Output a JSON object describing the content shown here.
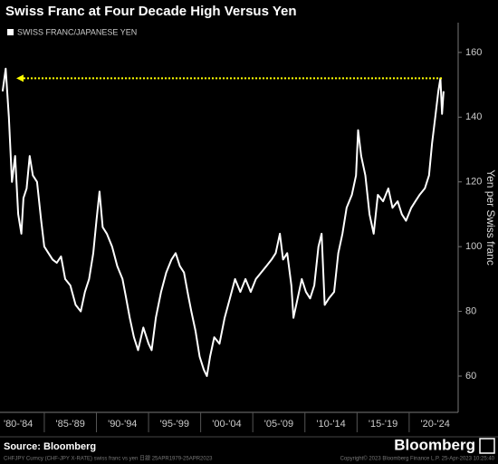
{
  "chart_data": {
    "type": "line",
    "title": "Swiss Franc at Four Decade High Versus Yen",
    "y_axis_label": "Yen per Swiss franc",
    "source": "Source: Bloomberg",
    "brand": "Bloomberg",
    "footnote_left": "CHFJPY Curncy (CHF-JPY X-RATE) swiss franc vs yen 日銀 25APR1979-25APR2023",
    "footnote_right": "Copyright© 2023 Bloomberg Finance L.P.   25-Apr-2023 10:25:40",
    "reference_line": {
      "value": 152,
      "color": "#ffff00"
    },
    "xlim": [
      1980.75,
      2024.7
    ],
    "ylim": [
      48.8,
      169.2
    ],
    "yticks": [
      60,
      80,
      100,
      120,
      140,
      160
    ],
    "xticks": [
      {
        "value": 1982.5,
        "label": "'80-'84"
      },
      {
        "value": 1987.5,
        "label": "'85-'89"
      },
      {
        "value": 1992.5,
        "label": "'90-'94"
      },
      {
        "value": 1997.5,
        "label": "'95-'99"
      },
      {
        "value": 2002.5,
        "label": "'00-'04"
      },
      {
        "value": 2007.5,
        "label": "'05-'09"
      },
      {
        "value": 2012.5,
        "label": "'10-'14"
      },
      {
        "value": 2017.5,
        "label": "'15-'19"
      },
      {
        "value": 2022.5,
        "label": "'20-'24"
      }
    ],
    "x": [
      1981.0,
      1981.3,
      1981.6,
      1981.9,
      1982.2,
      1982.5,
      1982.8,
      1983.0,
      1983.3,
      1983.6,
      1983.9,
      1984.3,
      1984.7,
      1985.0,
      1985.4,
      1985.8,
      1986.2,
      1986.6,
      1987.0,
      1987.5,
      1988.0,
      1988.5,
      1988.9,
      1989.3,
      1989.7,
      1990.0,
      1990.3,
      1990.6,
      1991.0,
      1991.5,
      1992.0,
      1992.5,
      1992.8,
      1993.2,
      1993.6,
      1994.0,
      1994.5,
      1995.0,
      1995.3,
      1995.7,
      1996.2,
      1996.7,
      1997.2,
      1997.6,
      1998.0,
      1998.4,
      1998.8,
      1999.1,
      1999.5,
      1999.9,
      2000.3,
      2000.6,
      2000.9,
      2001.3,
      2001.8,
      2002.3,
      2002.8,
      2003.3,
      2003.8,
      2004.3,
      2004.8,
      2005.3,
      2005.8,
      2006.3,
      2006.8,
      2007.2,
      2007.6,
      2007.9,
      2008.3,
      2008.7,
      2008.9,
      2009.3,
      2009.7,
      2010.1,
      2010.5,
      2010.9,
      2011.3,
      2011.6,
      2011.9,
      2012.3,
      2012.8,
      2013.2,
      2013.6,
      2014.0,
      2014.5,
      2014.9,
      2015.1,
      2015.4,
      2015.8,
      2016.2,
      2016.6,
      2017.0,
      2017.5,
      2018.0,
      2018.4,
      2018.9,
      2019.3,
      2019.7,
      2020.2,
      2020.6,
      2021.0,
      2021.5,
      2021.9,
      2022.2,
      2022.5,
      2022.8,
      2023.0,
      2023.15,
      2023.3
    ],
    "series": [
      {
        "name": "SWISS FRANC/JAPANESE YEN",
        "color": "#ffffff",
        "values": [
          148,
          155,
          140,
          120,
          128,
          110,
          104,
          115,
          118,
          128,
          122,
          120,
          108,
          100,
          98,
          96,
          95,
          97,
          90,
          88,
          82,
          80,
          86,
          90,
          98,
          108,
          117,
          106,
          104,
          100,
          94,
          90,
          85,
          78,
          72,
          68,
          75,
          70,
          68,
          78,
          86,
          92,
          96,
          98,
          94,
          92,
          85,
          80,
          74,
          66,
          62,
          60,
          66,
          72,
          70,
          78,
          84,
          90,
          86,
          90,
          86,
          90,
          92,
          94,
          96,
          98,
          104,
          96,
          98,
          88,
          78,
          84,
          90,
          86,
          84,
          88,
          100,
          104,
          82,
          84,
          86,
          98,
          104,
          112,
          116,
          122,
          136,
          128,
          122,
          110,
          104,
          116,
          114,
          118,
          112,
          114,
          110,
          108,
          112,
          114,
          116,
          118,
          122,
          132,
          140,
          148,
          152,
          141,
          148
        ]
      }
    ]
  }
}
